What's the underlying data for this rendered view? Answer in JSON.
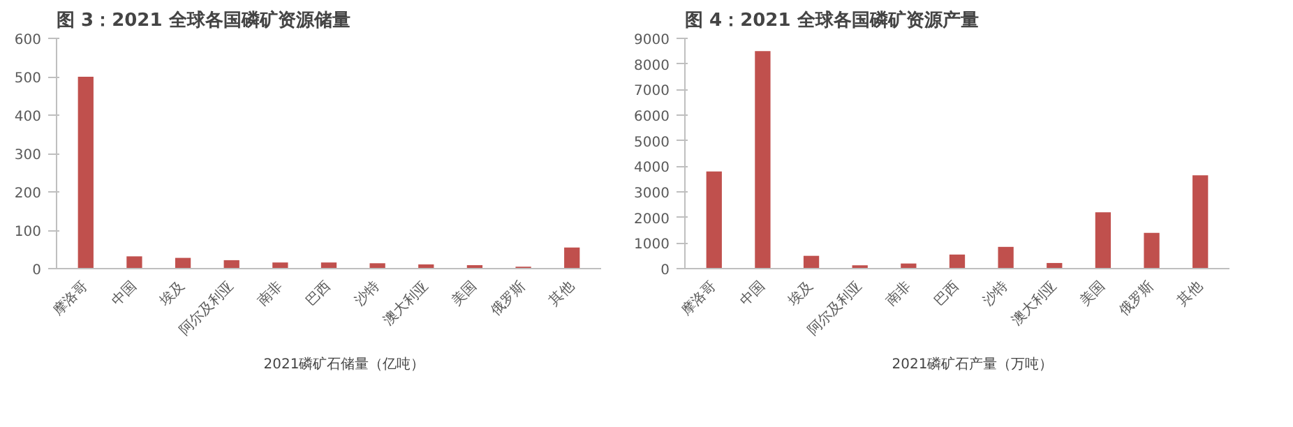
{
  "chart_data": [
    {
      "type": "bar",
      "title": "图 3：2021 全球各国磷矿资源储量",
      "categories": [
        "摩洛哥",
        "中国",
        "埃及",
        "阿尔及利亚",
        "南非",
        "巴西",
        "沙特",
        "澳大利亚",
        "美国",
        "俄罗斯",
        "其他"
      ],
      "series": [
        {
          "name": "2021磷矿石储量（亿吨）",
          "color": "#c0504d",
          "values": [
            500,
            32,
            28,
            22,
            16,
            16,
            14,
            11,
            9,
            5,
            55
          ]
        }
      ],
      "ylim": [
        0,
        600
      ],
      "yticks": [
        0,
        100,
        200,
        300,
        400,
        500,
        600
      ],
      "grid": false,
      "legend": "bottom"
    },
    {
      "type": "bar",
      "title": "图 4：2021 全球各国磷矿资源产量",
      "categories": [
        "摩洛哥",
        "中国",
        "埃及",
        "阿尔及利亚",
        "南非",
        "巴西",
        "沙特",
        "澳大利亚",
        "美国",
        "俄罗斯",
        "其他"
      ],
      "series": [
        {
          "name": "2021磷矿石产量（万吨）",
          "color": "#c0504d",
          "values": [
            3800,
            8500,
            500,
            130,
            200,
            550,
            850,
            220,
            2200,
            1400,
            3650
          ]
        }
      ],
      "ylim": [
        0,
        9000
      ],
      "yticks": [
        0,
        1000,
        2000,
        3000,
        4000,
        5000,
        6000,
        7000,
        8000,
        9000
      ],
      "grid": false,
      "legend": "bottom"
    }
  ]
}
